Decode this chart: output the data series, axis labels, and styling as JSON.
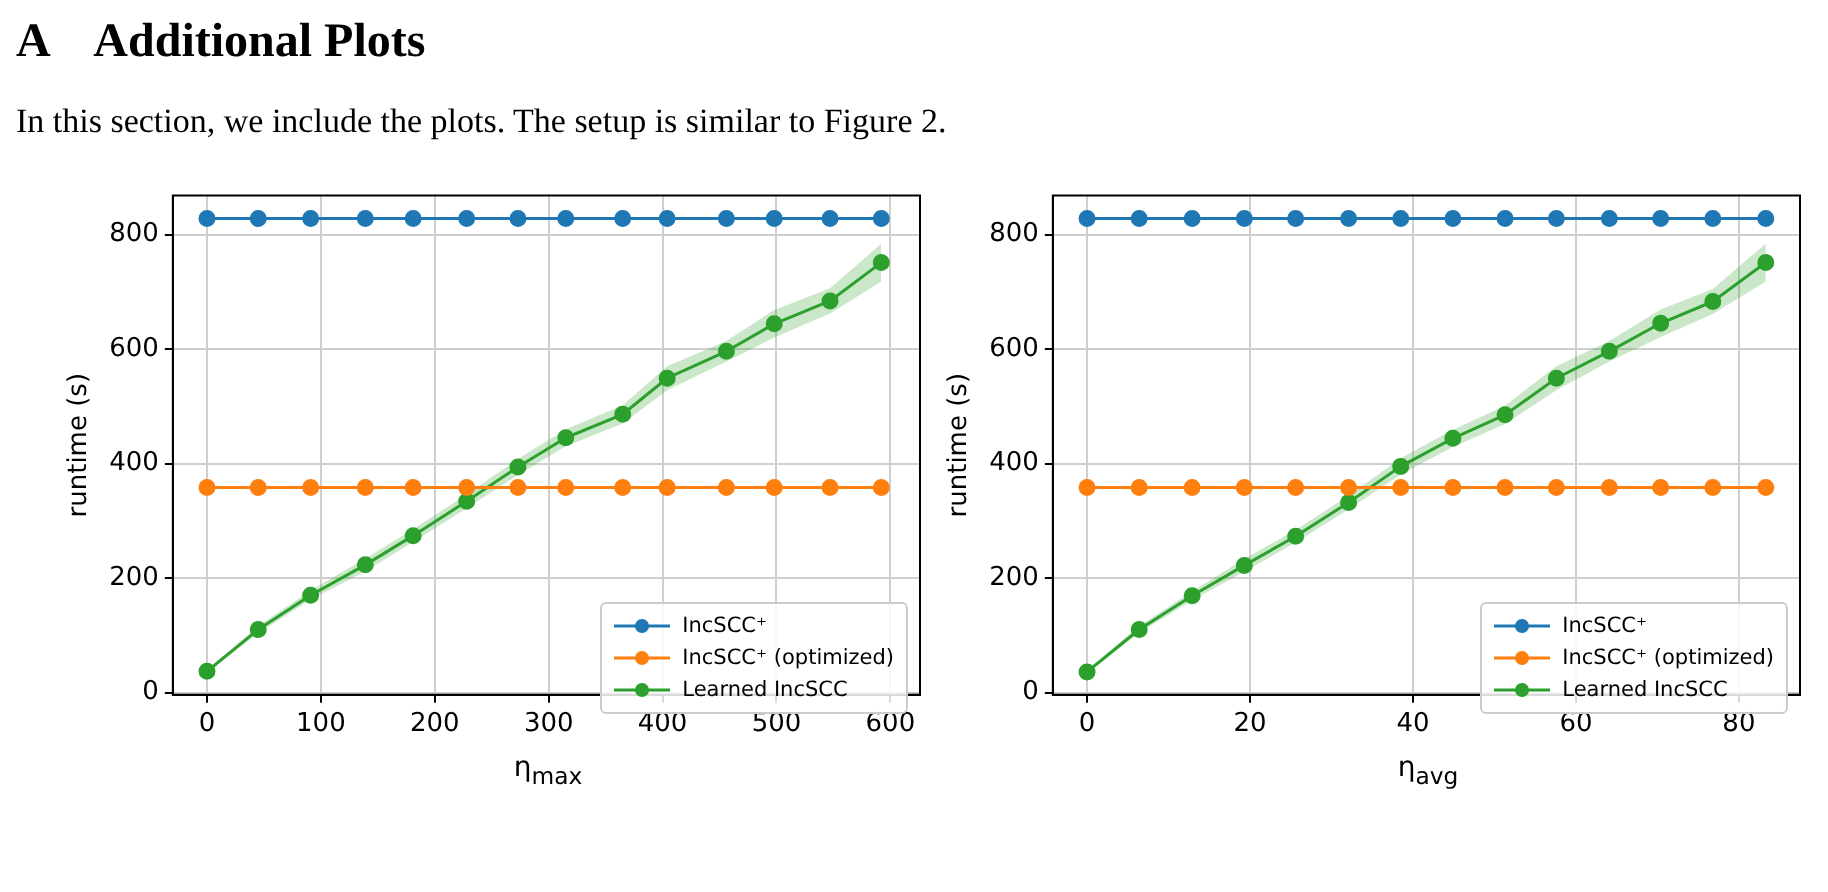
{
  "chart_data": [
    {
      "type": "line",
      "title": "A    Additional Plots",
      "subtitle": "In this section, we include the plots. The setup is similar to Figure 2.",
      "xlabel": "η$_{max}$",
      "ylabel": "runtime (s)",
      "xlim": [
        -30,
        626
      ],
      "xticks": [
        0,
        100,
        200,
        300,
        400,
        500,
        600
      ],
      "ylim": [
        -4,
        868
      ],
      "yticks": [
        0,
        200,
        400,
        600,
        800
      ],
      "grid": true,
      "legend": "bottom right",
      "marker": "circle",
      "line_style": "solid",
      "x": [
        0,
        45,
        91,
        139,
        181,
        228,
        273,
        315,
        365,
        404,
        456,
        498,
        547,
        592
      ],
      "series": [
        {
          "name": "IncSCC⁺",
          "color": "#1f77b4",
          "values": [
            828,
            828,
            828,
            828,
            828,
            828,
            828,
            828,
            828,
            828,
            828,
            828,
            828,
            828
          ]
        },
        {
          "name": "IncSCC⁺ (optimized)",
          "color": "#ff7f0e",
          "values": [
            358,
            358,
            358,
            358,
            358,
            358,
            358,
            358,
            358,
            358,
            358,
            358,
            358,
            358
          ]
        },
        {
          "name": "Learned IncSCC",
          "color": "#2ca02c",
          "values": [
            37,
            110,
            170,
            223,
            274,
            334,
            394,
            445,
            486,
            549,
            596,
            644,
            684,
            751
          ],
          "lower": [
            34,
            104,
            162,
            212,
            263,
            322,
            380,
            430,
            470,
            528,
            578,
            620,
            662,
            718
          ],
          "upper": [
            40,
            116,
            178,
            234,
            285,
            346,
            408,
            460,
            502,
            570,
            614,
            668,
            706,
            784
          ]
        }
      ]
    },
    {
      "type": "line",
      "xlabel": "η$_{avg}$",
      "ylabel": "runtime (s)",
      "xlim": [
        -4.2,
        87.5
      ],
      "xticks": [
        0,
        20,
        40,
        60,
        80
      ],
      "ylim": [
        -4,
        868
      ],
      "yticks": [
        0,
        200,
        400,
        600,
        800
      ],
      "grid": true,
      "legend": "bottom right",
      "marker": "circle",
      "line_style": "solid",
      "x": [
        0,
        6.4,
        12.9,
        19.3,
        25.6,
        32.1,
        38.5,
        44.9,
        51.3,
        57.6,
        64.1,
        70.4,
        76.8,
        83.3
      ],
      "series": [
        {
          "name": "IncSCC⁺",
          "color": "#1f77b4",
          "values": [
            828,
            828,
            828,
            828,
            828,
            828,
            828,
            828,
            828,
            828,
            828,
            828,
            828,
            828
          ]
        },
        {
          "name": "IncSCC⁺ (optimized)",
          "color": "#ff7f0e",
          "values": [
            358,
            358,
            358,
            358,
            358,
            358,
            358,
            358,
            358,
            358,
            358,
            358,
            358,
            358
          ]
        },
        {
          "name": "Learned IncSCC",
          "color": "#2ca02c",
          "values": [
            36,
            110,
            169,
            222,
            273,
            332,
            395,
            444,
            485,
            549,
            596,
            645,
            683,
            751
          ],
          "lower": [
            33,
            104,
            161,
            211,
            262,
            320,
            381,
            429,
            469,
            528,
            578,
            621,
            661,
            718
          ],
          "upper": [
            39,
            116,
            177,
            233,
            284,
            344,
            409,
            459,
            501,
            570,
            614,
            669,
            705,
            784
          ]
        }
      ]
    }
  ]
}
